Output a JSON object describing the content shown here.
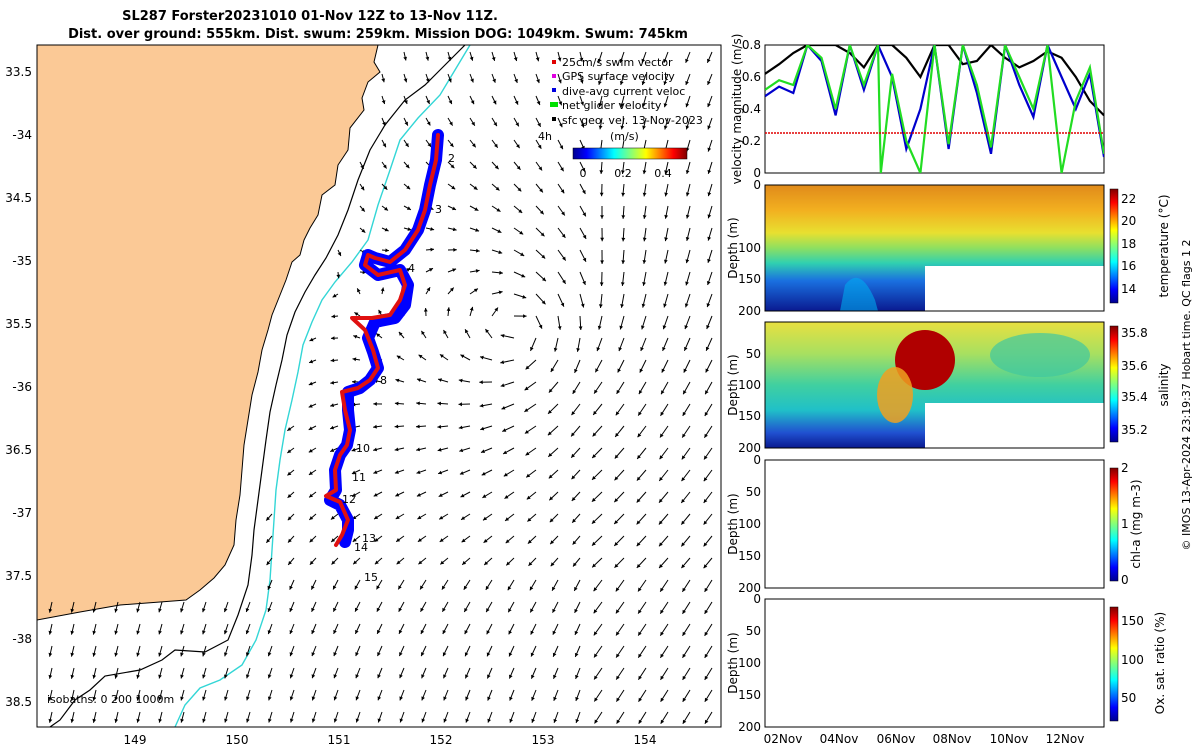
{
  "title": {
    "line1": "SL287 Forster20231010 01-Nov 12Z to 13-Nov 11Z.",
    "line2": "Dist. over ground: 555km. Dist. swum: 259km. Mission DOG: 1049km. Swum: 745km"
  },
  "map": {
    "lon_ticks": [
      "149",
      "150",
      "151",
      "152",
      "153",
      "154"
    ],
    "lat_ticks": [
      "33.5",
      "-34",
      "34.5",
      "-35",
      "35.5",
      "-36",
      "36.5",
      "-37",
      "37.5",
      "-38",
      "38.5"
    ],
    "legend": [
      {
        "label": "25cm/s swim vector",
        "color": "#e00000"
      },
      {
        "label": "GPS surface velocity",
        "color": "#e000e0"
      },
      {
        "label": "dive-avg current veloc",
        "color": "#0000e0"
      },
      {
        "label": "net glider velocity",
        "color": "#00e000"
      },
      {
        "label": "sfc geo. vel. 13-Nov-2023",
        "color": "#000000"
      }
    ],
    "arrow_scale_label": "4h",
    "colorbar": {
      "label": "(m/s)",
      "ticks": [
        "0",
        "0.2",
        "0.4"
      ]
    },
    "day_labels": [
      "2",
      "3",
      "4",
      "8",
      "10",
      "11",
      "12",
      "13",
      "14",
      "15"
    ],
    "isobath_label": "isobaths: 0   200  1000m",
    "colors": {
      "land": "#fbc996",
      "coast_line": "#000000",
      "isobath_200": "#000000",
      "isobath_1000": "#33d6d6",
      "track_outline": "#0000ff",
      "track_core": "#e01010"
    }
  },
  "chart_data": [
    {
      "type": "line",
      "ylabel": "velocity magnitude (m/s)",
      "ylim": [
        0,
        0.8
      ],
      "yticks": [
        "0",
        "0.2",
        "0.4",
        "0.6",
        "0.8"
      ],
      "x_range_days": [
        1.5,
        13.5
      ],
      "series": [
        {
          "name": "surface geostrophic velocity",
          "color": "#000000",
          "x": [
            1.5,
            2.0,
            2.5,
            3.0,
            3.5,
            4.0,
            4.5,
            5.0,
            5.5,
            6.0,
            6.5,
            7.0,
            7.5,
            8.0,
            8.5,
            9.0,
            9.5,
            10.0,
            10.5,
            11.0,
            11.5,
            12.0,
            12.5,
            13.0,
            13.5
          ],
          "y": [
            0.62,
            0.68,
            0.75,
            0.8,
            0.8,
            0.8,
            0.75,
            0.66,
            0.8,
            0.8,
            0.72,
            0.6,
            0.8,
            0.8,
            0.68,
            0.7,
            0.8,
            0.72,
            0.66,
            0.7,
            0.76,
            0.72,
            0.6,
            0.45,
            0.36
          ]
        },
        {
          "name": "dive-avg current velocity",
          "color": "#0000cc",
          "x": [
            1.5,
            2.0,
            2.5,
            3.0,
            3.5,
            4.0,
            4.5,
            5.0,
            5.5,
            6.0,
            6.5,
            7.0,
            7.5,
            8.0,
            8.5,
            9.0,
            9.5,
            10.0,
            10.5,
            11.0,
            11.5,
            12.0,
            12.5,
            13.0,
            13.5
          ],
          "y": [
            0.48,
            0.54,
            0.5,
            0.8,
            0.7,
            0.36,
            0.8,
            0.52,
            0.8,
            0.6,
            0.15,
            0.4,
            0.8,
            0.15,
            0.8,
            0.5,
            0.12,
            0.8,
            0.55,
            0.35,
            0.8,
            0.6,
            0.4,
            0.62,
            0.1
          ]
        },
        {
          "name": "net glider velocity",
          "color": "#22dd22",
          "x": [
            1.5,
            2.0,
            2.5,
            3.0,
            3.5,
            4.0,
            4.5,
            5.0,
            5.5,
            5.6,
            6.0,
            6.5,
            7.0,
            7.5,
            8.0,
            8.5,
            9.0,
            9.5,
            10.0,
            10.5,
            11.0,
            11.5,
            12.0,
            12.5,
            13.0,
            13.5
          ],
          "y": [
            0.52,
            0.58,
            0.55,
            0.8,
            0.72,
            0.4,
            0.8,
            0.55,
            0.8,
            0.0,
            0.62,
            0.2,
            0.0,
            0.8,
            0.18,
            0.8,
            0.55,
            0.16,
            0.8,
            0.6,
            0.4,
            0.8,
            0.0,
            0.45,
            0.66,
            0.12
          ]
        },
        {
          "name": "25cm/s reference",
          "color": "#e00000",
          "x": [
            1.5,
            13.5
          ],
          "y": [
            0.25,
            0.25
          ]
        }
      ]
    },
    {
      "type": "heatmap",
      "ylabel": "Depth (m)",
      "ylim": [
        0,
        200
      ],
      "yticks": [
        "0",
        "100",
        "150",
        "200"
      ],
      "colorbar": {
        "label": "temperature (°C)",
        "range": [
          13,
          23
        ],
        "ticks": [
          "14",
          "16",
          "18",
          "20",
          "22"
        ]
      }
    },
    {
      "type": "heatmap",
      "ylabel": "Depth (m)",
      "ylim": [
        0,
        200
      ],
      "yticks": [
        "50",
        "100",
        "150",
        "200"
      ],
      "colorbar": {
        "label": "salinity",
        "range": [
          35.1,
          35.85
        ],
        "ticks": [
          "35.2",
          "35.4",
          "35.6",
          "35.8"
        ]
      }
    },
    {
      "type": "heatmap",
      "ylabel": "Depth (m)",
      "ylim": [
        0,
        200
      ],
      "yticks": [
        "0",
        "50",
        "100",
        "150",
        "200"
      ],
      "colorbar": {
        "label": "chl-a (mg m-3)",
        "range": [
          0,
          2
        ],
        "ticks": [
          "0",
          "1",
          "2"
        ]
      }
    },
    {
      "type": "heatmap",
      "ylabel": "Depth (m)",
      "ylim": [
        0,
        200
      ],
      "yticks": [
        "0",
        "50",
        "100",
        "150",
        "200"
      ],
      "colorbar": {
        "label": "Ox. sat. ratio (%)",
        "range": [
          25,
          175
        ],
        "ticks": [
          "50",
          "100",
          "150"
        ]
      },
      "xticks": [
        "02Nov",
        "04Nov",
        "06Nov",
        "08Nov",
        "10Nov",
        "12Nov"
      ]
    }
  ],
  "footer": "© IMOS 13-Apr-2024 23:19:37 Hobart time. QC flags 1  2"
}
